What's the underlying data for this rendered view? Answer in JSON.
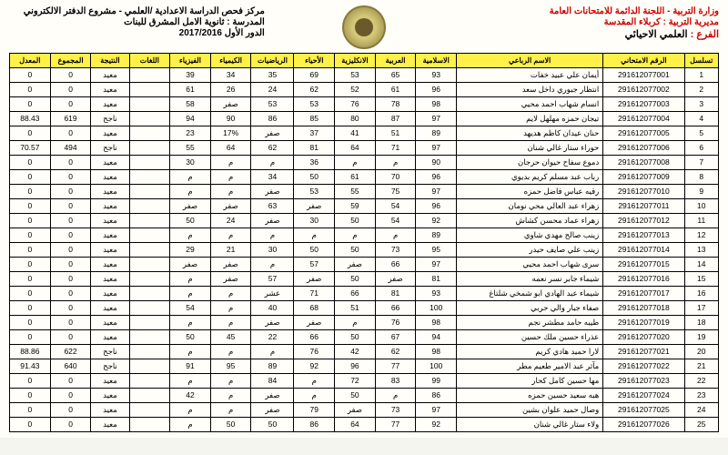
{
  "header": {
    "right": [
      "وزارة التربية - اللجنة الدائمة للامتحانات العامة",
      "مديرية التربية : كربلاء المقدسة"
    ],
    "left": [
      "مركز فحص الدراسة الاعدادية /العلمي - مشروع الدفتر الالكتروني",
      "المدرسة : ثانوية الامل المشرق للبنات",
      "الدور الأول 2017/2016"
    ],
    "branch_label": "الفرع :",
    "branch_value": " العلمي الاحيائي"
  },
  "columns": [
    "تسلسل",
    "الرقم الامتحاني",
    "الاسم الرباعي",
    "الاسلامية",
    "العربية",
    "الانكليزية",
    "الأحياء",
    "الرياضيات",
    "الكيمياء",
    "الفيزياء",
    "اللغات",
    "النتيجة",
    "المجموع",
    "المعدل"
  ],
  "rows": [
    [
      "1",
      "291612077001",
      "أيمان علي عبيد خفات",
      "93",
      "65",
      "53",
      "69",
      "35",
      "34",
      "39",
      "",
      "معيد",
      "0",
      "0"
    ],
    [
      "2",
      "291612077002",
      "انتظار جبوري داخل سعد",
      "96",
      "61",
      "52",
      "62",
      "24",
      "26",
      "61",
      "",
      "معيد",
      "0",
      "0"
    ],
    [
      "3",
      "291612077003",
      "انسام شهاب احمد محيي",
      "98",
      "78",
      "76",
      "53",
      "53",
      "صفر",
      "58",
      "",
      "معيد",
      "0",
      "0"
    ],
    [
      "4",
      "291612077004",
      "تيجان حمزه مهلهل لايم",
      "97",
      "87",
      "80",
      "85",
      "86",
      "90",
      "94",
      "",
      "ناجح",
      "619",
      "88.43"
    ],
    [
      "5",
      "291612077005",
      "حنان عيدان كاظم هديهد",
      "89",
      "51",
      "41",
      "37",
      "صفر",
      "17%",
      "23",
      "",
      "معيد",
      "0",
      "0"
    ],
    [
      "6",
      "291612077006",
      "حوراء ستار غالي شنان",
      "97",
      "71",
      "64",
      "81",
      "62",
      "64",
      "55",
      "",
      "ناجح",
      "494",
      "70.57"
    ],
    [
      "7",
      "291612077008",
      "دموع سفاح حيوان حرجان",
      "90",
      "م",
      "م",
      "36",
      "م",
      "م",
      "30",
      "",
      "معيد",
      "0",
      "0"
    ],
    [
      "8",
      "291612077009",
      "رباب عبد مسلم كريم بديوي",
      "96",
      "70",
      "61",
      "50",
      "34",
      "م",
      "م",
      "",
      "معيد",
      "0",
      "0"
    ],
    [
      "9",
      "291612077010",
      "رقيه عباس فاضل حمزه",
      "97",
      "75",
      "55",
      "53",
      "صفر",
      "م",
      "م",
      "",
      "معيد",
      "0",
      "0"
    ],
    [
      "10",
      "291612077011",
      "زهراء عبد العالي محي نومان",
      "96",
      "54",
      "59",
      "صفر",
      "63",
      "صفر",
      "صفر",
      "",
      "معيد",
      "0",
      "0"
    ],
    [
      "11",
      "291612077012",
      "زهراء عماد محسن كشاش",
      "92",
      "54",
      "50",
      "30",
      "صفر",
      "24",
      "50",
      "",
      "معيد",
      "0",
      "0"
    ],
    [
      "12",
      "291612077013",
      "زينب صالح مهدي شاوي",
      "89",
      "م",
      "م",
      "م",
      "م",
      "م",
      "م",
      "",
      "معيد",
      "0",
      "0"
    ],
    [
      "13",
      "291612077014",
      "زينب علي صايف حيدر",
      "95",
      "73",
      "50",
      "50",
      "30",
      "21",
      "29",
      "",
      "معيد",
      "0",
      "0"
    ],
    [
      "14",
      "291612077015",
      "سرى شهاب احمد محيي",
      "97",
      "66",
      "صفر",
      "57",
      "م",
      "صفر",
      "صفر",
      "",
      "معيد",
      "0",
      "0"
    ],
    [
      "15",
      "291612077016",
      "شيماء جابر نسر نعمه",
      "81",
      "صفر",
      "50",
      "صفر",
      "57",
      "صفر",
      "م",
      "",
      "معيد",
      "0",
      "0"
    ],
    [
      "16",
      "291612077017",
      "شيماء عبد الهادي ابو شمخي شلتاغ",
      "93",
      "81",
      "66",
      "71",
      "عشر",
      "م",
      "م",
      "",
      "معيد",
      "0",
      "0"
    ],
    [
      "17",
      "291612077018",
      "صفاء جبار والي حربي",
      "100",
      "66",
      "51",
      "68",
      "40",
      "م",
      "54",
      "",
      "معيد",
      "0",
      "0"
    ],
    [
      "18",
      "291612077019",
      "طيبه حامد مطشر نجم",
      "98",
      "76",
      "م",
      "صفر",
      "صفر",
      "م",
      "م",
      "",
      "معيد",
      "0",
      "0"
    ],
    [
      "19",
      "291612077020",
      "عذراء حسين ملك حسين",
      "94",
      "67",
      "50",
      "66",
      "22",
      "45",
      "50",
      "",
      "معيد",
      "0",
      "0"
    ],
    [
      "20",
      "291612077021",
      "لارا حميد هادي كريم",
      "98",
      "62",
      "42",
      "76",
      "م",
      "م",
      "م",
      "",
      "ناجح",
      "622",
      "88.86"
    ],
    [
      "21",
      "291612077022",
      "مآثر عبد الامير طعيم مطر",
      "100",
      "77",
      "96",
      "92",
      "89",
      "95",
      "91",
      "",
      "ناجح",
      "640",
      "91.43"
    ],
    [
      "22",
      "291612077023",
      "مها حسين كامل كحار",
      "99",
      "83",
      "72",
      "م",
      "84",
      "م",
      "م",
      "",
      "معيد",
      "0",
      "0"
    ],
    [
      "23",
      "291612077024",
      "هبه سعيد حسين حمزه",
      "86",
      "م",
      "50",
      "م",
      "صفر",
      "م",
      "42",
      "",
      "معيد",
      "0",
      "0"
    ],
    [
      "24",
      "291612077025",
      "وصال حميد علوان بشين",
      "97",
      "73",
      "صفر",
      "79",
      "صفر",
      "م",
      "م",
      "",
      "معيد",
      "0",
      "0"
    ],
    [
      "25",
      "291612077026",
      "ولاء ستار غالي شنان",
      "92",
      "77",
      "64",
      "86",
      "50",
      "50",
      "م",
      "",
      "معيد",
      "0",
      "0"
    ]
  ]
}
